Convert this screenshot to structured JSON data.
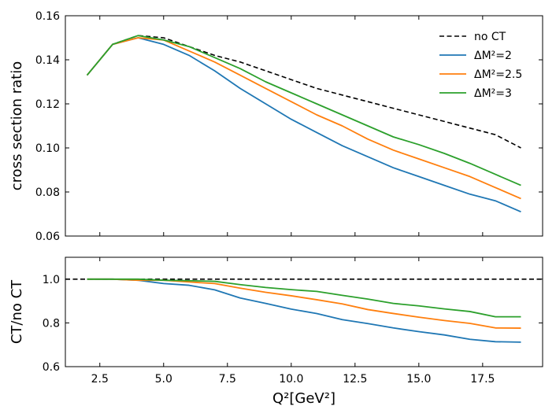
{
  "chart_data": [
    {
      "type": "line",
      "ylabel": "cross section ratio",
      "xlim": [
        1.15,
        19.85
      ],
      "ylim": [
        0.06,
        0.16
      ],
      "x_ticks": [
        "2.5",
        "5.0",
        "7.5",
        "10.0",
        "12.5",
        "15.0",
        "17.5"
      ],
      "y_ticks": [
        "0.06",
        "0.08",
        "0.10",
        "0.12",
        "0.14",
        "0.16"
      ],
      "legend_position": "top-right",
      "series": [
        {
          "name": "no CT",
          "color": "#000000",
          "dashed": true,
          "x": [
            2,
            3,
            4,
            5,
            6,
            7,
            8,
            9,
            10,
            11,
            12,
            13,
            14,
            15,
            16,
            17,
            18,
            19
          ],
          "y": [
            0.133,
            0.147,
            0.151,
            0.15,
            0.146,
            0.142,
            0.139,
            0.135,
            0.131,
            0.127,
            0.124,
            0.121,
            0.118,
            0.115,
            0.112,
            0.109,
            0.106,
            0.1
          ]
        },
        {
          "name": "ΔM²=2",
          "color": "#1f77b4",
          "dashed": false,
          "x": [
            2,
            3,
            4,
            5,
            6,
            7,
            8,
            9,
            10,
            11,
            12,
            13,
            14,
            15,
            16,
            17,
            18,
            19
          ],
          "y": [
            0.133,
            0.147,
            0.15,
            0.147,
            0.142,
            0.135,
            0.127,
            0.12,
            0.113,
            0.107,
            0.101,
            0.096,
            0.091,
            0.087,
            0.083,
            0.079,
            0.076,
            0.071
          ]
        },
        {
          "name": "ΔM²=2.5",
          "color": "#ff7f0e",
          "dashed": false,
          "x": [
            2,
            3,
            4,
            5,
            6,
            7,
            8,
            9,
            10,
            11,
            12,
            13,
            14,
            15,
            16,
            17,
            18,
            19
          ],
          "y": [
            0.133,
            0.147,
            0.15,
            0.149,
            0.144,
            0.139,
            0.133,
            0.127,
            0.121,
            0.115,
            0.11,
            0.104,
            0.099,
            0.095,
            0.091,
            0.087,
            0.082,
            0.077
          ]
        },
        {
          "name": "ΔM²=3",
          "color": "#2ca02c",
          "dashed": false,
          "x": [
            2,
            3,
            4,
            5,
            6,
            7,
            8,
            9,
            10,
            11,
            12,
            13,
            14,
            15,
            16,
            17,
            18,
            19
          ],
          "y": [
            0.133,
            0.147,
            0.151,
            0.149,
            0.146,
            0.141,
            0.136,
            0.13,
            0.125,
            0.12,
            0.115,
            0.11,
            0.105,
            0.1015,
            0.0975,
            0.093,
            0.088,
            0.083
          ]
        }
      ]
    },
    {
      "type": "line",
      "xlabel": "Q²[GeV²]",
      "ylabel": "CT/no CT",
      "xlim": [
        1.15,
        19.85
      ],
      "ylim": [
        0.6,
        1.1
      ],
      "x_ticks": [
        "2.5",
        "5.0",
        "7.5",
        "10.0",
        "12.5",
        "15.0",
        "17.5"
      ],
      "y_ticks": [
        "0.6",
        "0.8",
        "1.0"
      ],
      "reference_line": {
        "y": 1.0,
        "color": "#000000",
        "dashed": true
      },
      "series": [
        {
          "name": "ΔM²=2",
          "color": "#1f77b4",
          "x": [
            2,
            3,
            4,
            5,
            6,
            7,
            8,
            9,
            10,
            11,
            12,
            13,
            14,
            15,
            16,
            17,
            18,
            19
          ],
          "y": [
            1.0,
            1.0,
            0.995,
            0.98,
            0.972,
            0.951,
            0.914,
            0.889,
            0.863,
            0.843,
            0.815,
            0.797,
            0.777,
            0.76,
            0.745,
            0.725,
            0.714,
            0.712
          ]
        },
        {
          "name": "ΔM²=2.5",
          "color": "#ff7f0e",
          "x": [
            2,
            3,
            4,
            5,
            6,
            7,
            8,
            9,
            10,
            11,
            12,
            13,
            14,
            15,
            16,
            17,
            18,
            19
          ],
          "y": [
            1.0,
            1.0,
            0.995,
            0.995,
            0.987,
            0.98,
            0.959,
            0.94,
            0.924,
            0.906,
            0.887,
            0.861,
            0.843,
            0.826,
            0.811,
            0.798,
            0.777,
            0.776
          ]
        },
        {
          "name": "ΔM²=3",
          "color": "#2ca02c",
          "x": [
            2,
            3,
            4,
            5,
            6,
            7,
            8,
            9,
            10,
            11,
            12,
            13,
            14,
            15,
            16,
            17,
            18,
            19
          ],
          "y": [
            1.0,
            1.0,
            1.0,
            0.995,
            0.993,
            0.99,
            0.975,
            0.962,
            0.952,
            0.944,
            0.926,
            0.909,
            0.889,
            0.878,
            0.864,
            0.852,
            0.828,
            0.828
          ]
        }
      ]
    }
  ]
}
